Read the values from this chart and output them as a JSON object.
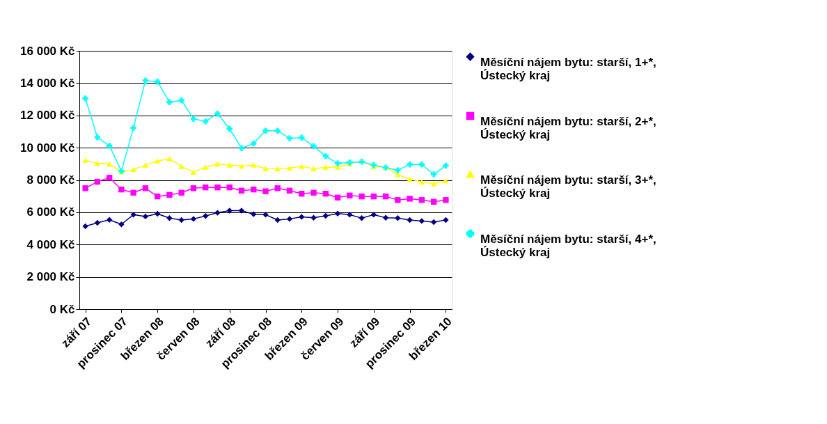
{
  "chart_data": {
    "type": "line",
    "categories": [
      "září 07",
      null,
      null,
      "prosinec 07",
      null,
      null,
      "březen 08",
      null,
      null,
      "červen 08",
      null,
      null,
      "září 08",
      null,
      null,
      "prosinec 08",
      null,
      null,
      "březen 09",
      null,
      null,
      "červen 09",
      null,
      null,
      "září 09",
      null,
      null,
      "prosinec 09",
      null,
      null,
      "březen 10"
    ],
    "series": [
      {
        "name": "Měsíční nájem bytu: starší, 1+*, Ústecký kraj",
        "color": "#000080",
        "marker": "diamond",
        "values": [
          5130,
          5350,
          5530,
          5250,
          5850,
          5740,
          5910,
          5640,
          5520,
          5590,
          5770,
          5970,
          6100,
          6100,
          5880,
          5850,
          5520,
          5590,
          5710,
          5660,
          5780,
          5920,
          5850,
          5640,
          5850,
          5660,
          5640,
          5520,
          5460,
          5390,
          5520
        ]
      },
      {
        "name": "Měsíční nájem bytu: starší, 2+*, Ústecký kraj",
        "color": "#ff00ff",
        "marker": "square",
        "values": [
          7490,
          7890,
          8140,
          7410,
          7210,
          7490,
          6980,
          7080,
          7210,
          7490,
          7540,
          7540,
          7540,
          7340,
          7410,
          7300,
          7490,
          7340,
          7150,
          7210,
          7150,
          6910,
          7040,
          6980,
          6980,
          6980,
          6760,
          6840,
          6760,
          6650,
          6760
        ]
      },
      {
        "name": "Měsíční nájem bytu: starší, 3+*, Ústecký kraj",
        "color": "#ffff00",
        "marker": "triangle",
        "values": [
          9220,
          9030,
          8990,
          8500,
          8640,
          8920,
          9180,
          9320,
          8840,
          8480,
          8790,
          8990,
          8920,
          8860,
          8920,
          8700,
          8700,
          8740,
          8840,
          8700,
          8790,
          8790,
          8990,
          9200,
          8820,
          8790,
          8340,
          8050,
          7880,
          7770,
          7950
        ]
      },
      {
        "name": "Měsíční nájem bytu: starší, 4+*, Ústecký kraj",
        "color": "#00ffff",
        "marker": "cross",
        "values": [
          13050,
          10650,
          10120,
          8550,
          11230,
          14160,
          14090,
          12820,
          12930,
          11780,
          11630,
          12110,
          11170,
          9970,
          10260,
          11050,
          11050,
          10580,
          10620,
          10090,
          9470,
          9030,
          9080,
          9130,
          8920,
          8770,
          8600,
          8960,
          8960,
          8350,
          8890
        ]
      }
    ],
    "ylim": [
      0,
      16000
    ],
    "yticks": [
      {
        "value": 0,
        "label": "0 Kč"
      },
      {
        "value": 2000,
        "label": "2 000 Kč"
      },
      {
        "value": 4000,
        "label": "4 000 Kč"
      },
      {
        "value": 6000,
        "label": "6 000 Kč"
      },
      {
        "value": 8000,
        "label": "8 000 Kč"
      },
      {
        "value": 10000,
        "label": "10 000 Kč"
      },
      {
        "value": 12000,
        "label": "12 000 Kč"
      },
      {
        "value": 14000,
        "label": "14 000 Kč"
      },
      {
        "value": 16000,
        "label": "16 000 Kč"
      }
    ],
    "grid": "y",
    "legend": "right",
    "line_style": "solid"
  }
}
